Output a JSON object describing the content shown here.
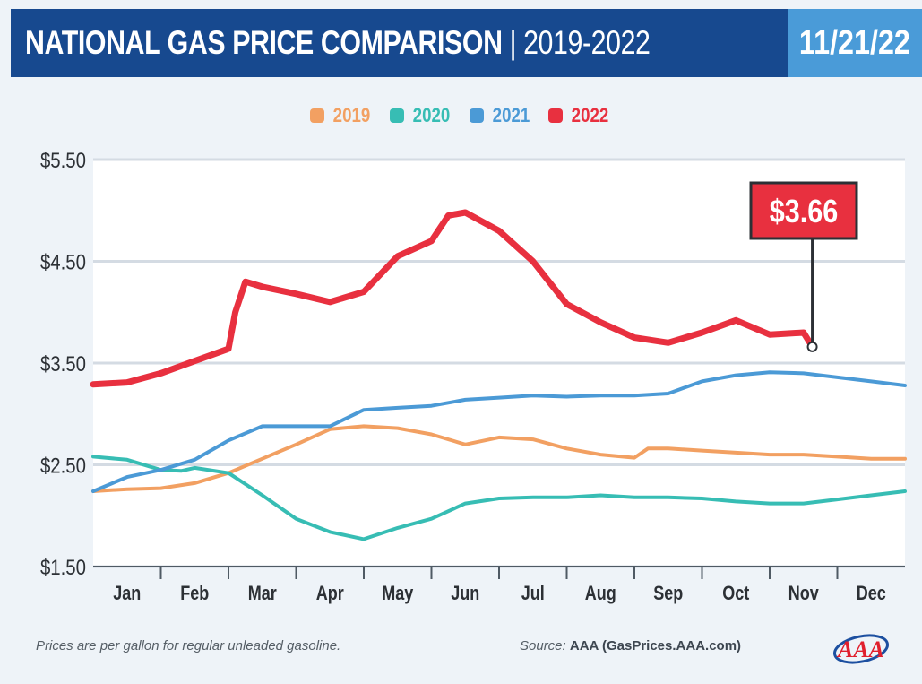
{
  "header": {
    "title_main": "NATIONAL GAS PRICE COMPARISON",
    "title_sep": " | ",
    "title_range": "2019-2022",
    "date": "11/21/22"
  },
  "footer": {
    "note": "Prices are per gallon for regular unleaded gasoline.",
    "source_prefix": "Source: ",
    "source": "AAA (GasPrices.AAA.com)",
    "logo_text": "AAA"
  },
  "chart_data": {
    "type": "line",
    "y_ticks": [
      "$5.50",
      "$4.50",
      "$3.50",
      "$2.50",
      "$1.50"
    ],
    "ylim": [
      1.5,
      5.5
    ],
    "months": [
      "Jan",
      "Feb",
      "Mar",
      "Apr",
      "May",
      "Jun",
      "Jul",
      "Aug",
      "Sep",
      "Oct",
      "Nov",
      "Dec"
    ],
    "grid": "horizontal",
    "legend_position": "top-center",
    "callout": {
      "label": "$3.66",
      "series": "2022",
      "x": 10.63,
      "y": 3.66
    },
    "series": [
      {
        "name": "2019",
        "color": "#f2a062",
        "points": [
          [
            0,
            2.24
          ],
          [
            0.5,
            2.26
          ],
          [
            1,
            2.27
          ],
          [
            1.5,
            2.32
          ],
          [
            2,
            2.42
          ],
          [
            2.5,
            2.56
          ],
          [
            3,
            2.7
          ],
          [
            3.5,
            2.85
          ],
          [
            4,
            2.88
          ],
          [
            4.5,
            2.86
          ],
          [
            5,
            2.8
          ],
          [
            5.5,
            2.7
          ],
          [
            6,
            2.77
          ],
          [
            6.5,
            2.75
          ],
          [
            7,
            2.66
          ],
          [
            7.5,
            2.6
          ],
          [
            8,
            2.57
          ],
          [
            8.2,
            2.66
          ],
          [
            8.5,
            2.66
          ],
          [
            9,
            2.64
          ],
          [
            9.5,
            2.62
          ],
          [
            10,
            2.6
          ],
          [
            10.5,
            2.6
          ],
          [
            11,
            2.58
          ],
          [
            11.5,
            2.56
          ],
          [
            12,
            2.56
          ]
        ]
      },
      {
        "name": "2020",
        "color": "#37bdb4",
        "points": [
          [
            0,
            2.58
          ],
          [
            0.5,
            2.55
          ],
          [
            1,
            2.45
          ],
          [
            1.3,
            2.44
          ],
          [
            1.5,
            2.47
          ],
          [
            2,
            2.42
          ],
          [
            2.5,
            2.2
          ],
          [
            3,
            1.97
          ],
          [
            3.5,
            1.84
          ],
          [
            4,
            1.77
          ],
          [
            4.5,
            1.88
          ],
          [
            5,
            1.97
          ],
          [
            5.5,
            2.12
          ],
          [
            6,
            2.17
          ],
          [
            6.5,
            2.18
          ],
          [
            7,
            2.18
          ],
          [
            7.5,
            2.2
          ],
          [
            8,
            2.18
          ],
          [
            8.5,
            2.18
          ],
          [
            9,
            2.17
          ],
          [
            9.5,
            2.14
          ],
          [
            10,
            2.12
          ],
          [
            10.5,
            2.12
          ],
          [
            11,
            2.16
          ],
          [
            11.5,
            2.2
          ],
          [
            12,
            2.24
          ]
        ]
      },
      {
        "name": "2021",
        "color": "#4b9ad6",
        "points": [
          [
            0,
            2.24
          ],
          [
            0.5,
            2.38
          ],
          [
            1,
            2.45
          ],
          [
            1.5,
            2.55
          ],
          [
            2,
            2.74
          ],
          [
            2.5,
            2.88
          ],
          [
            3,
            2.88
          ],
          [
            3.5,
            2.88
          ],
          [
            4,
            3.04
          ],
          [
            4.5,
            3.06
          ],
          [
            5,
            3.08
          ],
          [
            5.5,
            3.14
          ],
          [
            6,
            3.16
          ],
          [
            6.5,
            3.18
          ],
          [
            7,
            3.17
          ],
          [
            7.5,
            3.18
          ],
          [
            8,
            3.18
          ],
          [
            8.5,
            3.2
          ],
          [
            9,
            3.32
          ],
          [
            9.5,
            3.38
          ],
          [
            10,
            3.41
          ],
          [
            10.5,
            3.4
          ],
          [
            11,
            3.36
          ],
          [
            11.5,
            3.32
          ],
          [
            12,
            3.28
          ]
        ]
      },
      {
        "name": "2022",
        "color": "#e8303f",
        "points": [
          [
            0,
            3.29
          ],
          [
            0.5,
            3.31
          ],
          [
            1,
            3.4
          ],
          [
            1.5,
            3.52
          ],
          [
            2,
            3.64
          ],
          [
            2.1,
            4.0
          ],
          [
            2.25,
            4.3
          ],
          [
            2.5,
            4.25
          ],
          [
            3,
            4.18
          ],
          [
            3.5,
            4.1
          ],
          [
            4,
            4.2
          ],
          [
            4.5,
            4.55
          ],
          [
            5,
            4.7
          ],
          [
            5.25,
            4.95
          ],
          [
            5.5,
            4.98
          ],
          [
            6,
            4.8
          ],
          [
            6.5,
            4.5
          ],
          [
            7,
            4.08
          ],
          [
            7.5,
            3.9
          ],
          [
            8,
            3.75
          ],
          [
            8.5,
            3.7
          ],
          [
            9,
            3.8
          ],
          [
            9.5,
            3.92
          ],
          [
            10,
            3.78
          ],
          [
            10.5,
            3.8
          ],
          [
            10.63,
            3.66
          ]
        ]
      }
    ]
  }
}
